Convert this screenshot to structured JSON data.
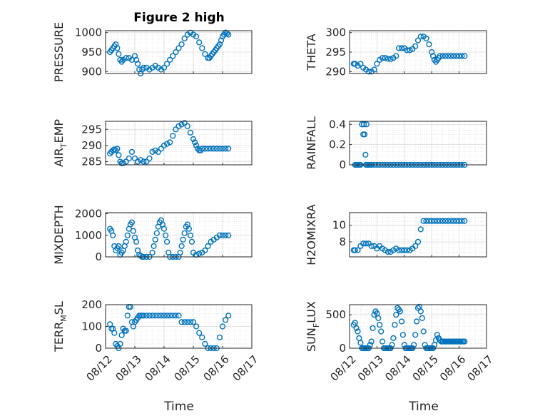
{
  "figure": {
    "title": "Figure 2 high",
    "marker_color": "#0072BD",
    "grid": true,
    "xlabel": "Time",
    "xticks": [
      "08/12",
      "08/13",
      "08/14",
      "08/15",
      "08/16",
      "08/17"
    ]
  },
  "chart_data": [
    {
      "type": "scatter",
      "id": "pressure",
      "title": "Figure 2 high",
      "ylabel": "PRESSURE",
      "ylim": [
        895,
        1005
      ],
      "yticks": [
        [
          "900",
          "900"
        ],
        [
          "950",
          "950"
        ],
        [
          "1000",
          "1000"
        ]
      ],
      "xlim": [
        0,
        5
      ],
      "x": [
        0.15,
        0.2,
        0.25,
        0.3,
        0.35,
        0.4,
        0.45,
        0.5,
        0.55,
        0.6,
        0.7,
        0.8,
        0.9,
        1.0,
        1.05,
        1.1,
        1.15,
        1.2,
        1.25,
        1.3,
        1.4,
        1.5,
        1.6,
        1.7,
        1.8,
        1.9,
        2.0,
        2.1,
        2.2,
        2.3,
        2.4,
        2.5,
        2.6,
        2.7,
        2.8,
        2.9,
        3.0,
        3.1,
        3.2,
        3.3,
        3.4,
        3.5,
        3.55,
        3.6,
        3.65,
        3.7,
        3.75,
        3.8,
        3.85,
        3.9,
        3.95,
        4.0,
        4.05,
        4.1,
        4.15,
        4.2
      ],
      "values": [
        950,
        955,
        960,
        965,
        970,
        960,
        945,
        930,
        925,
        930,
        935,
        935,
        930,
        940,
        930,
        920,
        905,
        895,
        905,
        910,
        910,
        905,
        910,
        915,
        910,
        905,
        910,
        920,
        930,
        940,
        950,
        960,
        970,
        985,
        995,
        1000,
        995,
        990,
        975,
        960,
        945,
        935,
        935,
        940,
        945,
        950,
        955,
        960,
        965,
        970,
        980,
        990,
        995,
        1000,
        998,
        995
      ]
    },
    {
      "type": "scatter",
      "id": "theta",
      "ylabel": "THETA",
      "ylim": [
        289.5,
        300.5
      ],
      "yticks": [
        [
          "290",
          "290"
        ],
        [
          "295",
          "295"
        ],
        [
          "300",
          "300"
        ]
      ],
      "xlim": [
        0,
        5
      ],
      "x": [
        0.15,
        0.2,
        0.3,
        0.4,
        0.5,
        0.6,
        0.7,
        0.8,
        0.9,
        1.0,
        1.1,
        1.2,
        1.3,
        1.4,
        1.5,
        1.6,
        1.7,
        1.8,
        1.9,
        2.0,
        2.1,
        2.2,
        2.3,
        2.4,
        2.5,
        2.6,
        2.7,
        2.8,
        2.9,
        3.0,
        3.05,
        3.1,
        3.15,
        3.2,
        3.25,
        3.3,
        3.4,
        3.5,
        3.6,
        3.7,
        3.8,
        3.9,
        4.0,
        4.1,
        4.2
      ],
      "values": [
        292,
        292,
        291.5,
        292,
        291,
        290.5,
        290,
        290,
        290.5,
        292,
        293,
        293.5,
        293.5,
        293.3,
        293.2,
        293.5,
        294,
        296,
        296,
        296,
        295.5,
        295.5,
        295.8,
        296.5,
        298,
        299,
        299,
        298.5,
        297,
        295,
        294,
        293,
        292.5,
        293,
        293.5,
        294,
        294,
        294,
        294,
        294,
        294,
        294,
        294,
        294,
        294
      ]
    },
    {
      "type": "scatter",
      "id": "air_temp",
      "ylabel": "AIR",
      "ylabel_sub": "T",
      "ylabel_rest": "EMP",
      "ylim": [
        284,
        297.5
      ],
      "yticks": [
        [
          "285",
          "285"
        ],
        [
          "290",
          "290"
        ],
        [
          "295",
          "295"
        ]
      ],
      "xlim": [
        0,
        5
      ],
      "x": [
        0.15,
        0.2,
        0.25,
        0.3,
        0.35,
        0.4,
        0.45,
        0.5,
        0.55,
        0.6,
        0.7,
        0.8,
        0.9,
        1.0,
        1.1,
        1.2,
        1.3,
        1.4,
        1.5,
        1.6,
        1.7,
        1.8,
        1.9,
        2.0,
        2.1,
        2.2,
        2.3,
        2.4,
        2.5,
        2.6,
        2.7,
        2.8,
        2.9,
        3.0,
        3.05,
        3.1,
        3.15,
        3.2,
        3.25,
        3.3,
        3.4,
        3.5,
        3.6,
        3.7,
        3.8,
        3.9,
        4.0,
        4.1,
        4.2
      ],
      "values": [
        287.5,
        288,
        288.5,
        288.8,
        288.5,
        289,
        287,
        285,
        284.5,
        284.5,
        285,
        286,
        288,
        286,
        285,
        285.5,
        285,
        285,
        286,
        288,
        288.5,
        288,
        289,
        290,
        290.5,
        291,
        293,
        295,
        296,
        296.5,
        297,
        296,
        294,
        292,
        291,
        290,
        289,
        288.5,
        288.5,
        289,
        289,
        289,
        289,
        289,
        289,
        289,
        289,
        289,
        289
      ]
    },
    {
      "type": "scatter",
      "id": "rainfall",
      "ylabel": "RAINFALL",
      "ylim": [
        0,
        0.43
      ],
      "yticks": [
        [
          "0",
          "0"
        ],
        [
          "0.2",
          "0.2"
        ],
        [
          "0.4",
          "0.4"
        ]
      ],
      "xlim": [
        0,
        5
      ],
      "x": [
        0.2,
        0.25,
        0.3,
        0.35,
        0.4,
        0.45,
        0.5,
        0.52,
        0.55,
        0.58,
        0.6,
        0.62,
        0.65,
        0.7,
        0.75,
        0.8,
        0.9,
        1.0,
        1.1,
        1.2,
        1.3,
        1.4,
        1.5,
        1.6,
        1.7,
        1.8,
        1.9,
        2.0,
        2.1,
        2.2,
        2.3,
        2.4,
        2.5,
        2.6,
        2.7,
        2.8,
        2.9,
        3.0,
        3.1,
        3.2,
        3.3,
        3.4,
        3.5,
        3.6,
        3.7,
        3.8,
        3.9,
        4.0,
        4.1,
        4.2
      ],
      "values": [
        0,
        0,
        0,
        0,
        0,
        0.4,
        0.3,
        0.4,
        0.3,
        0.1,
        0,
        0.4,
        0,
        0,
        0,
        0,
        0,
        0,
        0,
        0,
        0,
        0,
        0,
        0,
        0,
        0,
        0,
        0,
        0,
        0,
        0,
        0,
        0,
        0,
        0,
        0,
        0,
        0,
        0,
        0,
        0,
        0,
        0,
        0,
        0,
        0,
        0,
        0,
        0,
        0
      ]
    },
    {
      "type": "scatter",
      "id": "mixdepth",
      "ylabel": "MIXDEPTH",
      "ylim": [
        0,
        2050
      ],
      "yticks": [
        [
          "0",
          "0"
        ],
        [
          "1000",
          "1000"
        ],
        [
          "2000",
          "2000"
        ]
      ],
      "xlim": [
        0,
        5
      ],
      "x": [
        0.15,
        0.2,
        0.25,
        0.3,
        0.35,
        0.4,
        0.45,
        0.5,
        0.55,
        0.6,
        0.65,
        0.7,
        0.75,
        0.8,
        0.85,
        0.9,
        0.95,
        1.0,
        1.05,
        1.1,
        1.15,
        1.2,
        1.25,
        1.3,
        1.4,
        1.5,
        1.6,
        1.65,
        1.7,
        1.75,
        1.8,
        1.85,
        1.9,
        1.95,
        2.0,
        2.05,
        2.1,
        2.15,
        2.2,
        2.3,
        2.4,
        2.5,
        2.55,
        2.6,
        2.65,
        2.7,
        2.75,
        2.8,
        2.85,
        2.9,
        2.95,
        3.0,
        3.1,
        3.2,
        3.3,
        3.4,
        3.5,
        3.6,
        3.7,
        3.8,
        3.9,
        4.0,
        4.1,
        4.2
      ],
      "values": [
        1300,
        1200,
        1000,
        500,
        300,
        400,
        500,
        100,
        200,
        300,
        500,
        700,
        1000,
        1300,
        1500,
        1600,
        1200,
        900,
        700,
        300,
        100,
        50,
        0,
        0,
        0,
        0,
        200,
        500,
        800,
        1100,
        1400,
        1600,
        1700,
        1500,
        1300,
        1000,
        700,
        200,
        0,
        0,
        0,
        0,
        200,
        500,
        800,
        1100,
        1400,
        1500,
        1300,
        1000,
        700,
        200,
        100,
        150,
        200,
        300,
        500,
        700,
        800,
        900,
        1000,
        1000,
        1000,
        1000
      ]
    },
    {
      "type": "scatter",
      "id": "h2omixra",
      "ylabel": "H2OMIXRA",
      "ylim": [
        6.2,
        11.5
      ],
      "yticks": [
        [
          "8",
          "8"
        ],
        [
          "10",
          "10"
        ]
      ],
      "xlim": [
        0,
        5
      ],
      "x": [
        0.15,
        0.2,
        0.3,
        0.4,
        0.5,
        0.6,
        0.7,
        0.8,
        0.9,
        1.0,
        1.1,
        1.2,
        1.3,
        1.4,
        1.5,
        1.6,
        1.7,
        1.8,
        1.9,
        2.0,
        2.1,
        2.2,
        2.3,
        2.4,
        2.5,
        2.6,
        2.7,
        2.8,
        2.9,
        3.0,
        3.1,
        3.2,
        3.3,
        3.4,
        3.5,
        3.6,
        3.7,
        3.8,
        3.9,
        4.0,
        4.1,
        4.2
      ],
      "values": [
        7,
        7,
        7,
        7.5,
        7.8,
        7.8,
        7.8,
        7.5,
        7.5,
        7.2,
        7.5,
        7.2,
        7,
        6.8,
        6.8,
        7,
        7.2,
        7,
        7,
        7,
        7,
        7,
        7.2,
        7.5,
        8,
        9.5,
        10.5,
        10.5,
        10.5,
        10.5,
        10.5,
        10.5,
        10.5,
        10.5,
        10.5,
        10.5,
        10.5,
        10.5,
        10.5,
        10.5,
        10.5,
        10.5
      ]
    },
    {
      "type": "scatter",
      "id": "terr_msl",
      "ylabel": "TERR",
      "ylabel_sub": "M",
      "ylabel_rest": "SL",
      "ylim": [
        0,
        200
      ],
      "yticks": [
        [
          "0",
          "0"
        ],
        [
          "100",
          "100"
        ],
        [
          "200",
          "200"
        ]
      ],
      "xlim": [
        0,
        5
      ],
      "x": [
        0.15,
        0.2,
        0.25,
        0.3,
        0.35,
        0.4,
        0.45,
        0.5,
        0.55,
        0.6,
        0.65,
        0.7,
        0.75,
        0.8,
        0.85,
        0.9,
        0.95,
        1.0,
        1.05,
        1.1,
        1.15,
        1.2,
        1.25,
        1.3,
        1.4,
        1.5,
        1.6,
        1.7,
        1.8,
        1.9,
        2.0,
        2.1,
        2.2,
        2.3,
        2.4,
        2.5,
        2.6,
        2.7,
        2.8,
        2.9,
        3.0,
        3.1,
        3.2,
        3.3,
        3.4,
        3.5,
        3.6,
        3.7,
        3.8,
        3.9,
        4.0,
        4.1,
        4.2
      ],
      "values": [
        110,
        90,
        90,
        70,
        20,
        10,
        0,
        20,
        60,
        90,
        80,
        80,
        150,
        190,
        190,
        120,
        100,
        120,
        130,
        140,
        150,
        150,
        150,
        150,
        150,
        150,
        150,
        150,
        150,
        150,
        150,
        150,
        150,
        150,
        150,
        150,
        120,
        120,
        120,
        120,
        120,
        100,
        70,
        50,
        20,
        0,
        0,
        0,
        0,
        50,
        100,
        130,
        150
      ]
    },
    {
      "type": "scatter",
      "id": "sun_flux",
      "ylabel": "SUN",
      "ylabel_sub": "F",
      "ylabel_rest": "LUX",
      "ylim": [
        0,
        650
      ],
      "yticks": [
        [
          "0",
          "0"
        ],
        [
          "500",
          "500"
        ]
      ],
      "xlim": [
        0,
        5
      ],
      "x": [
        0.15,
        0.2,
        0.25,
        0.3,
        0.35,
        0.4,
        0.45,
        0.5,
        0.55,
        0.6,
        0.65,
        0.7,
        0.75,
        0.8,
        0.85,
        0.9,
        0.95,
        1.0,
        1.05,
        1.1,
        1.15,
        1.2,
        1.25,
        1.3,
        1.35,
        1.4,
        1.45,
        1.5,
        1.55,
        1.6,
        1.65,
        1.7,
        1.75,
        1.8,
        1.85,
        1.9,
        1.95,
        2.0,
        2.05,
        2.1,
        2.15,
        2.2,
        2.25,
        2.3,
        2.35,
        2.4,
        2.45,
        2.5,
        2.55,
        2.6,
        2.65,
        2.7,
        2.75,
        2.8,
        2.85,
        2.9,
        2.95,
        3.0,
        3.05,
        3.1,
        3.15,
        3.2,
        3.25,
        3.3,
        3.35,
        3.4,
        3.45,
        3.5,
        3.55,
        3.6,
        3.65,
        3.7,
        3.75,
        3.8,
        3.85,
        3.9,
        3.95,
        4.0,
        4.05,
        4.1,
        4.15,
        4.2
      ],
      "values": [
        350,
        380,
        300,
        250,
        150,
        80,
        0,
        0,
        0,
        0,
        0,
        0,
        50,
        100,
        300,
        500,
        550,
        520,
        450,
        350,
        250,
        100,
        0,
        0,
        0,
        0,
        0,
        0,
        50,
        150,
        350,
        500,
        600,
        580,
        550,
        400,
        200,
        50,
        0,
        0,
        0,
        0,
        0,
        0,
        50,
        200,
        400,
        600,
        620,
        550,
        450,
        250,
        50,
        0,
        0,
        0,
        0,
        0,
        0,
        50,
        120,
        200,
        150,
        120,
        100,
        100,
        100,
        100,
        100,
        100,
        100,
        100,
        100,
        100,
        100,
        100,
        100,
        100,
        100,
        100,
        100,
        100
      ]
    }
  ]
}
